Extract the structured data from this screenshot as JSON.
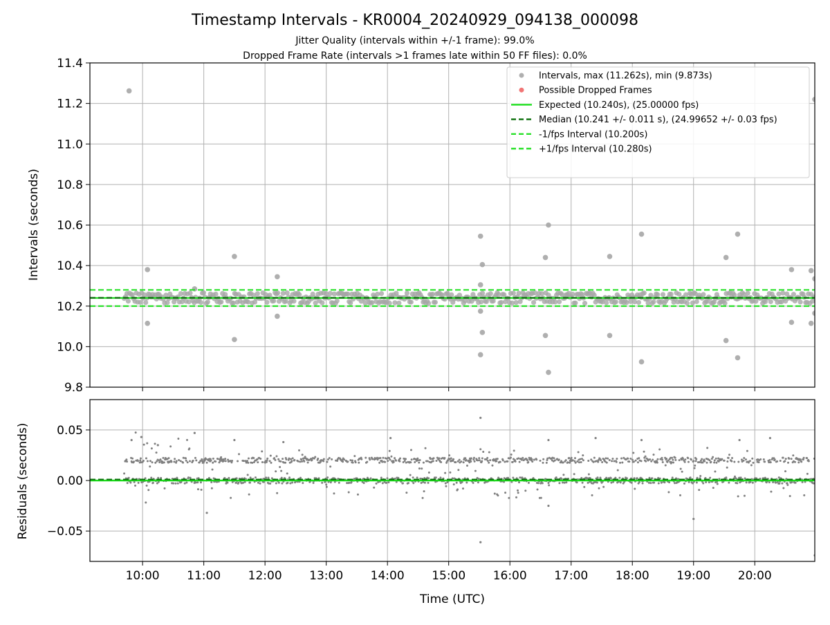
{
  "figure": {
    "title": "Timestamp Intervals - KR0004_20240929_094138_000098",
    "subtitle_1": "Jitter Quality (intervals within +/-1 frame): 99.0%",
    "subtitle_2": "Dropped Frame Rate (intervals >1 frames late within 50 FF files): 0.0%",
    "xlabel": "Time (UTC)"
  },
  "colors": {
    "points": "#a6a6a6",
    "residual_points": "#808080",
    "expected": "#1adf1a",
    "median": "#0a6e0a",
    "fps_bounds": "#27e027",
    "dropped": "#f06666",
    "grid": "#b0b0b0"
  },
  "chart_data": [
    {
      "type": "scatter",
      "ylabel": "Intervals (seconds)",
      "ylim": [
        9.8,
        11.4
      ],
      "yticks": [
        "9.8",
        "10.0",
        "10.2",
        "10.4",
        "10.6",
        "10.8",
        "11.0",
        "11.2",
        "11.4"
      ],
      "xlim_hours": [
        9.14,
        20.98
      ],
      "grid": true,
      "legend_placement": "upper-right",
      "legend": [
        {
          "label": "Intervals, max (11.262s), min (9.873s)",
          "style": "marker",
          "color": "#a6a6a6"
        },
        {
          "label": "Possible Dropped Frames",
          "style": "marker",
          "color": "#f06666"
        },
        {
          "label": "Expected (10.240s), (25.00000 fps)",
          "style": "solid",
          "color": "#1adf1a"
        },
        {
          "label": "Median (10.241 +/- 0.011 s), (24.99652 +/- 0.03 fps)",
          "style": "dashed",
          "color": "#0a6e0a"
        },
        {
          "label": "-1/fps Interval (10.200s)",
          "style": "dashed",
          "color": "#27e027"
        },
        {
          "label": "+1/fps Interval (10.280s)",
          "style": "dashed",
          "color": "#27e027"
        }
      ],
      "reference_lines": {
        "expected": 10.24,
        "median": 10.241,
        "minus_fps": 10.2,
        "plus_fps": 10.28
      },
      "main_band": {
        "time_range_hours": [
          9.7,
          20.98
        ],
        "levels": [
          10.22,
          10.24,
          10.26
        ]
      },
      "outliers": [
        {
          "t": 9.78,
          "y": 11.262
        },
        {
          "t": 10.08,
          "y": 10.38
        },
        {
          "t": 10.08,
          "y": 10.115
        },
        {
          "t": 10.85,
          "y": 10.285
        },
        {
          "t": 11.5,
          "y": 10.445
        },
        {
          "t": 11.5,
          "y": 10.035
        },
        {
          "t": 12.2,
          "y": 10.345
        },
        {
          "t": 12.2,
          "y": 10.15
        },
        {
          "t": 15.52,
          "y": 10.545
        },
        {
          "t": 15.55,
          "y": 10.405
        },
        {
          "t": 15.52,
          "y": 10.305
        },
        {
          "t": 15.52,
          "y": 10.175
        },
        {
          "t": 15.55,
          "y": 10.07
        },
        {
          "t": 15.52,
          "y": 9.96
        },
        {
          "t": 16.58,
          "y": 10.44
        },
        {
          "t": 16.58,
          "y": 10.055
        },
        {
          "t": 16.63,
          "y": 10.6
        },
        {
          "t": 16.63,
          "y": 9.873
        },
        {
          "t": 17.63,
          "y": 10.445
        },
        {
          "t": 17.63,
          "y": 10.055
        },
        {
          "t": 18.15,
          "y": 10.555
        },
        {
          "t": 18.15,
          "y": 9.925
        },
        {
          "t": 19.53,
          "y": 10.44
        },
        {
          "t": 19.53,
          "y": 10.03
        },
        {
          "t": 19.72,
          "y": 10.555
        },
        {
          "t": 19.72,
          "y": 9.945
        },
        {
          "t": 20.6,
          "y": 10.38
        },
        {
          "t": 20.6,
          "y": 10.12
        },
        {
          "t": 20.92,
          "y": 10.375
        },
        {
          "t": 20.92,
          "y": 10.115
        },
        {
          "t": 20.98,
          "y": 11.22
        },
        {
          "t": 20.98,
          "y": 10.335
        },
        {
          "t": 20.98,
          "y": 10.165
        }
      ]
    },
    {
      "type": "scatter",
      "ylabel": "Residuals (seconds)",
      "ylim": [
        -0.08,
        0.08
      ],
      "yticks": [
        "−0.05",
        "0.00",
        "0.05"
      ],
      "yticks_values": [
        -0.05,
        0.0,
        0.05
      ],
      "xticks": [
        "10:00",
        "11:00",
        "12:00",
        "13:00",
        "14:00",
        "15:00",
        "16:00",
        "17:00",
        "18:00",
        "19:00",
        "20:00"
      ],
      "xticks_hours": [
        10,
        11,
        12,
        13,
        14,
        15,
        16,
        17,
        18,
        19,
        20
      ],
      "grid": true,
      "reference_lines": {
        "expected": 0.0,
        "median": 0.001
      },
      "bands": [
        {
          "level": 0.0,
          "spread": 0.003
        },
        {
          "level": 0.02,
          "spread": 0.0025
        }
      ],
      "outliers": [
        {
          "t": 9.82,
          "y": 0.04
        },
        {
          "t": 9.98,
          "y": 0.043
        },
        {
          "t": 10.25,
          "y": 0.035
        },
        {
          "t": 10.85,
          "y": 0.047
        },
        {
          "t": 11.05,
          "y": -0.032
        },
        {
          "t": 11.5,
          "y": 0.04
        },
        {
          "t": 12.3,
          "y": 0.038
        },
        {
          "t": 14.05,
          "y": 0.042
        },
        {
          "t": 15.52,
          "y": 0.062
        },
        {
          "t": 15.52,
          "y": -0.061
        },
        {
          "t": 16.63,
          "y": 0.04
        },
        {
          "t": 16.63,
          "y": -0.025
        },
        {
          "t": 17.4,
          "y": 0.042
        },
        {
          "t": 18.15,
          "y": 0.04
        },
        {
          "t": 19.0,
          "y": -0.038
        },
        {
          "t": 19.75,
          "y": 0.04
        },
        {
          "t": 20.25,
          "y": 0.042
        },
        {
          "t": 20.98,
          "y": -0.074
        }
      ]
    }
  ]
}
